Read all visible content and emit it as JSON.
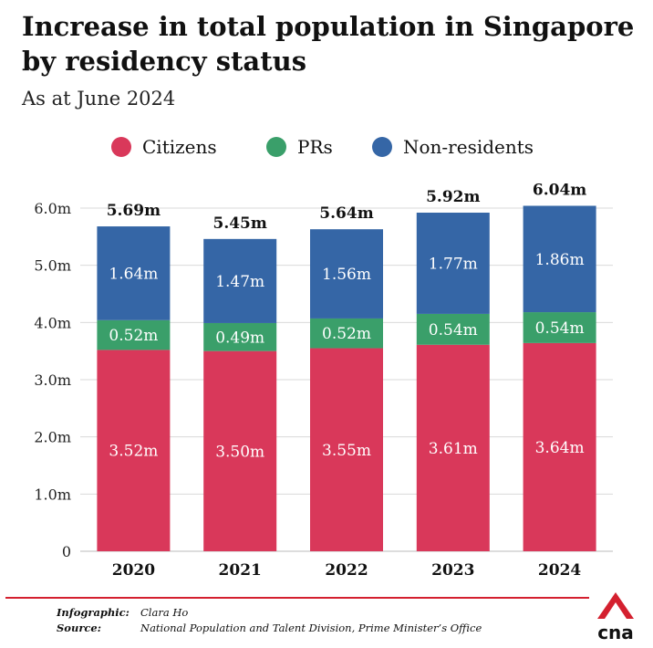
{
  "title": "Increase in total population in Singapore by residency status",
  "subtitle": "As at June 2024",
  "colors": {
    "citizens": "#d9385a",
    "prs": "#3a9f6a",
    "non_residents": "#3566a6",
    "grid": "#d9d9d9",
    "footer_rule": "#d4202f",
    "logo": "#d4202f"
  },
  "legend": [
    {
      "key": "citizens",
      "label": "Citizens"
    },
    {
      "key": "prs",
      "label": "PRs"
    },
    {
      "key": "non_residents",
      "label": "Non-residents"
    }
  ],
  "chart_data": {
    "type": "bar",
    "stacked": true,
    "title": "Increase in total population in Singapore by residency status",
    "subtitle": "As at June 2024",
    "categories": [
      "2020",
      "2021",
      "2022",
      "2023",
      "2024"
    ],
    "series": [
      {
        "name": "Citizens",
        "key": "citizens",
        "values": [
          3.52,
          3.5,
          3.55,
          3.61,
          3.64
        ],
        "labels": [
          "3.52m",
          "3.50m",
          "3.55m",
          "3.61m",
          "3.64m"
        ]
      },
      {
        "name": "PRs",
        "key": "prs",
        "values": [
          0.52,
          0.49,
          0.52,
          0.54,
          0.54
        ],
        "labels": [
          "0.52m",
          "0.49m",
          "0.52m",
          "0.54m",
          "0.54m"
        ]
      },
      {
        "name": "Non-residents",
        "key": "non_residents",
        "values": [
          1.64,
          1.47,
          1.56,
          1.77,
          1.86
        ],
        "labels": [
          "1.64m",
          "1.47m",
          "1.56m",
          "1.77m",
          "1.86m"
        ]
      }
    ],
    "totals": [
      5.69,
      5.45,
      5.64,
      5.92,
      6.04
    ],
    "total_labels": [
      "5.69m",
      "5.45m",
      "5.64m",
      "5.92m",
      "6.04m"
    ],
    "ylim": [
      0,
      6.0
    ],
    "yticks": [
      0,
      1.0,
      2.0,
      3.0,
      4.0,
      5.0,
      6.0
    ],
    "ytick_labels": [
      "0",
      "1.0m",
      "2.0m",
      "3.0m",
      "4.0m",
      "5.0m",
      "6.0m"
    ],
    "xlabel": "",
    "ylabel": "",
    "grid": true,
    "legend_position": "top-center"
  },
  "credits": {
    "infographic_label": "Infographic:",
    "infographic_value": "Clara Ho",
    "source_label": "Source:",
    "source_value": "National Population and Talent Division, Prime Minister’s Office"
  },
  "logo_text": "cna"
}
